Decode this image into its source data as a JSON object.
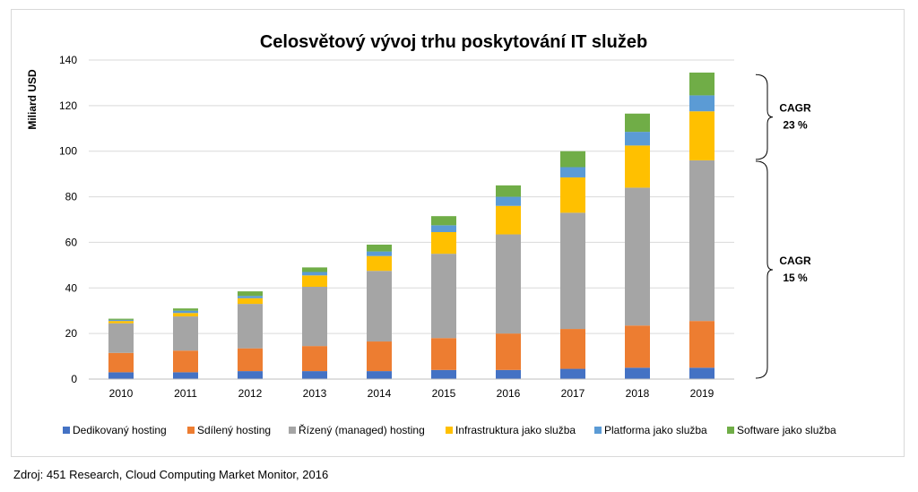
{
  "chart_data": {
    "type": "bar",
    "stacked": true,
    "title": "Celosvětový vývoj trhu poskytování IT služeb",
    "xlabel": "",
    "ylabel": "Miliard USD",
    "ylim": [
      0,
      140
    ],
    "yticks": [
      0,
      20,
      40,
      60,
      80,
      100,
      120,
      140
    ],
    "grid": true,
    "legend_position": "bottom",
    "categories": [
      "2010",
      "2011",
      "2012",
      "2013",
      "2014",
      "2015",
      "2016",
      "2017",
      "2018",
      "2019"
    ],
    "series": [
      {
        "name": "Dedikovaný hosting",
        "color": "#4472c4",
        "values": [
          3,
          3,
          3.5,
          3.5,
          3.5,
          4,
          4,
          4.5,
          5,
          5
        ]
      },
      {
        "name": "Sdílený hosting",
        "color": "#ed7d31",
        "values": [
          8.5,
          9.5,
          10,
          11,
          13,
          14,
          16,
          17.5,
          18.5,
          20.5
        ]
      },
      {
        "name": "Řízený (managed) hosting",
        "color": "#a5a5a5",
        "values": [
          13,
          15,
          19.5,
          26,
          31,
          37,
          43.5,
          51,
          60.5,
          70.5
        ]
      },
      {
        "name": "Infrastruktura jako služba",
        "color": "#ffc000",
        "values": [
          1,
          1.5,
          2.5,
          5,
          6.5,
          9.5,
          12.5,
          15.5,
          18.5,
          21.5
        ]
      },
      {
        "name": "Platforma jako služba",
        "color": "#5b9bd5",
        "values": [
          0.5,
          1,
          1,
          1.5,
          2,
          3,
          4,
          4.5,
          6,
          7
        ]
      },
      {
        "name": "Software jako služba",
        "color": "#70ad47",
        "values": [
          0.5,
          1,
          2,
          2,
          3,
          4,
          5,
          7,
          8,
          10
        ]
      }
    ],
    "annotations": [
      {
        "text_lines": [
          "CAGR",
          "23 %"
        ],
        "from": 96,
        "to": 134
      },
      {
        "text_lines": [
          "CAGR",
          "15 %"
        ],
        "from": 0,
        "to": 96
      }
    ]
  },
  "source": "Zdroj: 451 Research, Cloud Computing Market Monitor, 2016"
}
